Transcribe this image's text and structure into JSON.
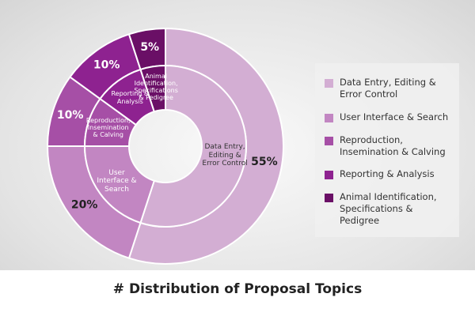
{
  "chart_data": {
    "type": "donut",
    "title": "# Distribution of Proposal Topics",
    "categories": [
      "Data Entry, Editing & Error Control",
      "User Interface & Search",
      "Reproduction, Insemination & Calving",
      "Reporting & Analysis",
      "Animal Identification, Specifications & Pedigree"
    ],
    "values": [
      55,
      20,
      10,
      10,
      5
    ],
    "value_labels": [
      "55%",
      "20%",
      "10%",
      "10%",
      "5%"
    ],
    "colors": [
      "#d3aed3",
      "#c286c2",
      "#a64fa6",
      "#8e2290",
      "#6a0f66"
    ],
    "legend": "right"
  }
}
